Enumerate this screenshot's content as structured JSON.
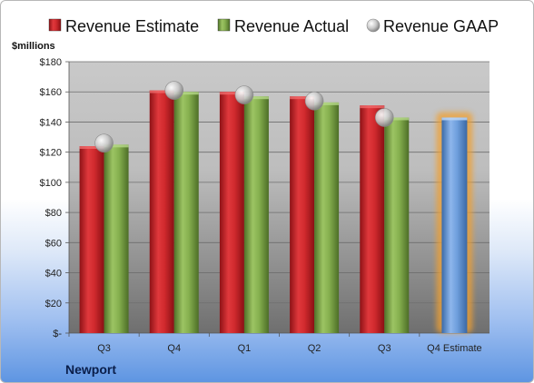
{
  "company": "Newport",
  "legend": [
    {
      "label": "Revenue Estimate",
      "marker": "square",
      "color": "#c62026"
    },
    {
      "label": "Revenue Actual",
      "marker": "square",
      "color": "#77a043"
    },
    {
      "label": "Revenue GAAP",
      "marker": "circle",
      "color": "#c8c8c8"
    }
  ],
  "chart_data": {
    "type": "bar",
    "ylabel": "$millions",
    "ylim": [
      0,
      180
    ],
    "yticks": [
      0,
      20,
      40,
      60,
      80,
      100,
      120,
      140,
      160,
      180
    ],
    "ytick_labels": [
      "$-",
      "$20",
      "$40",
      "$60",
      "$80",
      "$100",
      "$120",
      "$140",
      "$160",
      "$180"
    ],
    "categories": [
      "Q3",
      "Q4",
      "Q1",
      "Q2",
      "Q3",
      "Q4 Estimate"
    ],
    "grid": true,
    "legend_position": "top",
    "series": [
      {
        "name": "Revenue Estimate",
        "type": "bar",
        "color": "#c62026",
        "values": [
          124,
          161,
          160,
          157,
          151,
          null
        ]
      },
      {
        "name": "Revenue Actual",
        "type": "bar",
        "color": "#77a043",
        "values": [
          125,
          160,
          157,
          153,
          143,
          null
        ]
      },
      {
        "name": "Revenue GAAP",
        "type": "marker",
        "color": "#c8c8c8",
        "values": [
          126,
          161,
          158,
          154,
          143,
          null
        ]
      },
      {
        "name": "Q4 Estimate",
        "type": "bar",
        "color": "#5b8fd4",
        "highlight": "#f0a030",
        "values": [
          null,
          null,
          null,
          null,
          null,
          143
        ]
      }
    ]
  }
}
